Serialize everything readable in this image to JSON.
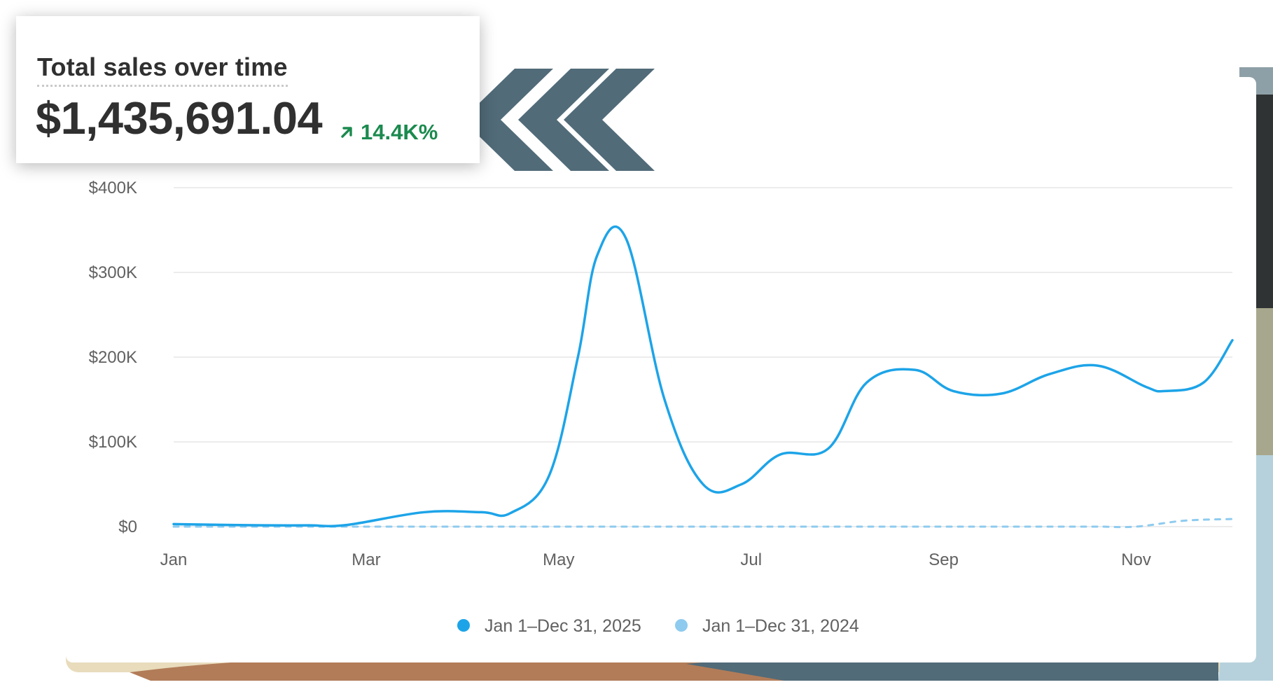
{
  "summary": {
    "title": "Total sales over time",
    "total": "$1,435,691.04",
    "change": "14.4K%",
    "change_icon": "arrow-up-right-icon",
    "change_color": "#1b8a4e"
  },
  "colors": {
    "current": "#1da4e8",
    "previous": "#8ecbef",
    "grid": "#ececec",
    "chevron": "#516b79"
  },
  "chart_data": {
    "type": "line",
    "title": "Total sales over time",
    "xlabel": "",
    "ylabel": "",
    "x_ticks": [
      "Jan",
      "Mar",
      "May",
      "Jul",
      "Sep",
      "Nov"
    ],
    "y_ticks": [
      "$0",
      "$100K",
      "$200K",
      "$300K",
      "$400K"
    ],
    "ylim": [
      0,
      400000
    ],
    "xlim": [
      0,
      11
    ],
    "grid": true,
    "legend_position": "bottom-center",
    "series": [
      {
        "name": "Jan 1–Dec 31, 2025",
        "style": "solid",
        "x": [
          0,
          0.6,
          1,
          1.4,
          1.8,
          2.6,
          3.2,
          3.5,
          3.9,
          4.2,
          4.4,
          4.7,
          5.1,
          5.5,
          5.9,
          6.3,
          6.8,
          7.2,
          7.7,
          8.1,
          8.6,
          9.1,
          9.6,
          10.1,
          10.3,
          10.7,
          11
        ],
        "y": [
          3000,
          2000,
          1500,
          1500,
          2000,
          17000,
          17000,
          16000,
          60000,
          200000,
          320000,
          340000,
          150000,
          50000,
          50000,
          85000,
          92000,
          170000,
          185000,
          160000,
          157000,
          180000,
          190000,
          165000,
          160000,
          170000,
          220000
        ]
      },
      {
        "name": "Jan 1–Dec 31, 2024",
        "style": "dashed",
        "x": [
          0,
          1,
          2,
          3,
          4,
          5,
          6,
          7,
          8,
          9,
          9.6,
          10,
          10.5,
          11
        ],
        "y": [
          0,
          0,
          0,
          0,
          0,
          0,
          0,
          0,
          0,
          0,
          0,
          0,
          7000,
          9000
        ]
      }
    ]
  }
}
